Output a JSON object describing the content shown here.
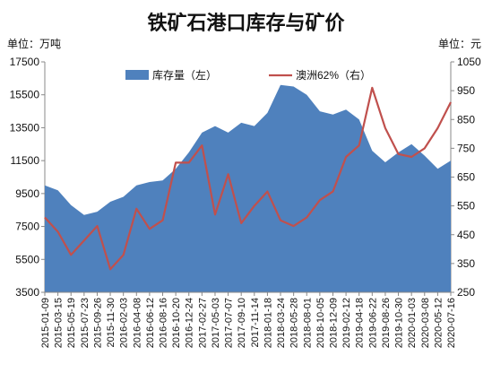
{
  "title": "铁矿石港口库存与矿价",
  "unit_left": "单位：万吨",
  "unit_right": "单位：元",
  "chart_data": {
    "type": "area",
    "title": "铁矿石港口库存与矿价",
    "legend_position": "top",
    "grid": false,
    "y_left": {
      "min": 3500,
      "max": 17500,
      "ticks": [
        3500,
        5500,
        7500,
        9500,
        11500,
        13500,
        15500,
        17500
      ]
    },
    "y_right": {
      "min": 250,
      "max": 1050,
      "ticks": [
        250,
        350,
        450,
        550,
        650,
        750,
        850,
        950,
        1050
      ]
    },
    "x_ticks": [
      "2015-01-09",
      "2015-03-15",
      "2015-05-19",
      "2015-07-23",
      "2015-09-26",
      "2015-11-30",
      "2016-02-03",
      "2016-04-08",
      "2016-06-12",
      "2016-08-16",
      "2016-10-20",
      "2016-12-24",
      "2017-02-27",
      "2017-05-03",
      "2017-07-07",
      "2017-09-10",
      "2017-11-14",
      "2018-01-18",
      "2018-03-24",
      "2018-05-28",
      "2018-08-01",
      "2018-10-05",
      "2018-12-09",
      "2019-02-12",
      "2019-04-18",
      "2019-06-22",
      "2019-08-26",
      "2019-10-30",
      "2020-01-03",
      "2020-03-08",
      "2020-05-12",
      "2020-07-16"
    ],
    "series": [
      {
        "name": "库存量（左）",
        "axis": "left",
        "color": "#4f81bd",
        "x": [
          "2015-01-09",
          "2015-03-15",
          "2015-05-19",
          "2015-07-23",
          "2015-09-26",
          "2015-11-30",
          "2016-02-03",
          "2016-04-08",
          "2016-06-12",
          "2016-08-16",
          "2016-10-20",
          "2016-12-24",
          "2017-02-27",
          "2017-05-03",
          "2017-07-07",
          "2017-09-10",
          "2017-11-14",
          "2018-01-18",
          "2018-03-24",
          "2018-05-28",
          "2018-08-01",
          "2018-10-05",
          "2018-12-09",
          "2019-02-12",
          "2019-04-18",
          "2019-06-22",
          "2019-08-26",
          "2019-10-30",
          "2020-01-03",
          "2020-03-08",
          "2020-05-12",
          "2020-07-16"
        ],
        "values": [
          10000,
          9700,
          8800,
          8200,
          8400,
          9000,
          9300,
          10000,
          10200,
          10300,
          11000,
          12000,
          13200,
          13600,
          13200,
          13800,
          13600,
          14400,
          16100,
          16000,
          15500,
          14500,
          14300,
          14600,
          14000,
          12100,
          11400,
          12000,
          12500,
          11800,
          11000,
          11500
        ]
      },
      {
        "name": "澳洲62%（右）",
        "axis": "right",
        "color": "#c0504d",
        "x": [
          "2015-01-09",
          "2015-03-15",
          "2015-05-19",
          "2015-07-23",
          "2015-09-26",
          "2015-11-30",
          "2016-02-03",
          "2016-04-08",
          "2016-06-12",
          "2016-08-16",
          "2016-10-20",
          "2016-12-24",
          "2017-02-27",
          "2017-05-03",
          "2017-07-07",
          "2017-09-10",
          "2017-11-14",
          "2018-01-18",
          "2018-03-24",
          "2018-05-28",
          "2018-08-01",
          "2018-10-05",
          "2018-12-09",
          "2019-02-12",
          "2019-04-18",
          "2019-06-22",
          "2019-08-26",
          "2019-10-30",
          "2020-01-03",
          "2020-03-08",
          "2020-05-12",
          "2020-07-16"
        ],
        "values": [
          510,
          460,
          380,
          430,
          480,
          330,
          380,
          540,
          470,
          500,
          700,
          700,
          760,
          520,
          660,
          490,
          550,
          600,
          500,
          480,
          510,
          570,
          600,
          720,
          760,
          960,
          820,
          730,
          720,
          750,
          820,
          910
        ]
      }
    ]
  }
}
